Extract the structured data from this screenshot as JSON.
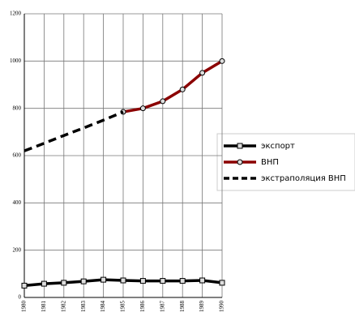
{
  "chart_data": {
    "type": "line",
    "categories": [
      "1980",
      "1981",
      "1982",
      "1983",
      "1984",
      "1985",
      "1986",
      "1987",
      "1988",
      "1989",
      "1990"
    ],
    "series": [
      {
        "name": "экспорт",
        "color": "#000000",
        "marker": "square",
        "dashed": false,
        "values": [
          50,
          58,
          62,
          68,
          75,
          72,
          70,
          70,
          70,
          72,
          62
        ]
      },
      {
        "name": "ВНП",
        "color": "#8b0000",
        "marker": "circle",
        "dashed": false,
        "values": [
          null,
          null,
          null,
          null,
          null,
          785,
          800,
          830,
          880,
          950,
          1000
        ]
      },
      {
        "name": "экстраполяция ВНП",
        "color": "#000000",
        "marker": "none",
        "dashed": true,
        "values": [
          620,
          652,
          685,
          717,
          750,
          785,
          null,
          null,
          null,
          null,
          null
        ]
      }
    ],
    "ylim": [
      0,
      1200
    ],
    "yticks": [
      0,
      200,
      400,
      600,
      800,
      1000,
      1200
    ],
    "grid": true
  }
}
